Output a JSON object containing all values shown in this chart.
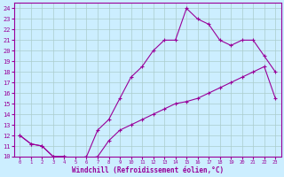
{
  "xlabel": "Windchill (Refroidissement éolien,°C)",
  "ylabel": "",
  "bg_color": "#cceeff",
  "line_color": "#990099",
  "grid_color": "#aacccc",
  "xlim": [
    -0.5,
    23.5
  ],
  "ylim": [
    10,
    24.5
  ],
  "xticks": [
    0,
    1,
    2,
    3,
    4,
    5,
    6,
    7,
    8,
    9,
    10,
    11,
    12,
    13,
    14,
    15,
    16,
    17,
    18,
    19,
    20,
    21,
    22,
    23
  ],
  "yticks": [
    10,
    11,
    12,
    13,
    14,
    15,
    16,
    17,
    18,
    19,
    20,
    21,
    22,
    23,
    24
  ],
  "line1_x": [
    0,
    1,
    2,
    3,
    4,
    5,
    6,
    7,
    8,
    9,
    10,
    11,
    12,
    13,
    14,
    15,
    16,
    17,
    18,
    19,
    20,
    21,
    22,
    23
  ],
  "line1_y": [
    12.0,
    11.2,
    11.0,
    10.0,
    10.0,
    9.8,
    9.8,
    10.0,
    11.5,
    12.5,
    13.0,
    13.5,
    14.0,
    14.5,
    15.0,
    15.2,
    15.5,
    16.0,
    16.5,
    17.0,
    17.5,
    18.0,
    18.5,
    15.5
  ],
  "line2_x": [
    0,
    1,
    2,
    3,
    4,
    5,
    6,
    7,
    8,
    9,
    10,
    11,
    12,
    13,
    14,
    15,
    16,
    17,
    18,
    19,
    20,
    21,
    22,
    23
  ],
  "line2_y": [
    12.0,
    11.2,
    11.0,
    10.0,
    10.0,
    9.8,
    10.0,
    12.5,
    13.5,
    15.5,
    17.5,
    18.5,
    20.0,
    21.0,
    21.0,
    24.0,
    23.0,
    22.5,
    21.0,
    20.5,
    21.0,
    21.0,
    19.5,
    18.0
  ]
}
